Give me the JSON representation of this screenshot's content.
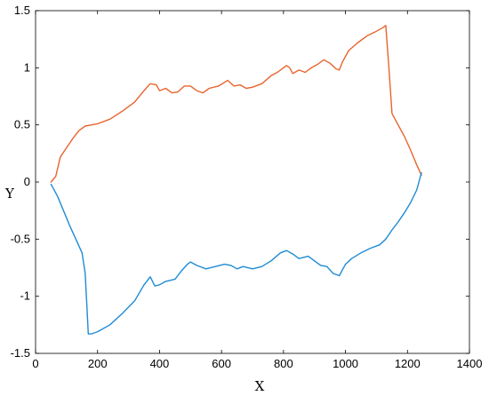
{
  "chart_data": {
    "type": "line",
    "title": "",
    "xlabel": "X",
    "ylabel": "Y",
    "xlim": [
      0,
      1400
    ],
    "ylim": [
      -1.5,
      1.5
    ],
    "xticks": [
      0,
      200,
      400,
      600,
      800,
      1000,
      1200,
      1400
    ],
    "yticks": [
      -1.5,
      -1,
      -0.5,
      0,
      0.5,
      1,
      1.5
    ],
    "xtick_labels": [
      "0",
      "200",
      "400",
      "600",
      "800",
      "1000",
      "1200",
      "1400"
    ],
    "ytick_labels": [
      "-1.5",
      "-1",
      "-0.5",
      "0",
      "0.5",
      "1",
      "1.5"
    ],
    "grid": false,
    "series": [
      {
        "color": "#e8642e",
        "points": [
          [
            50,
            0.0
          ],
          [
            65,
            0.05
          ],
          [
            80,
            0.22
          ],
          [
            100,
            0.3
          ],
          [
            120,
            0.38
          ],
          [
            140,
            0.45
          ],
          [
            160,
            0.49
          ],
          [
            180,
            0.5
          ],
          [
            200,
            0.51
          ],
          [
            240,
            0.55
          ],
          [
            280,
            0.62
          ],
          [
            320,
            0.7
          ],
          [
            350,
            0.8
          ],
          [
            370,
            0.86
          ],
          [
            390,
            0.85
          ],
          [
            400,
            0.8
          ],
          [
            420,
            0.82
          ],
          [
            440,
            0.78
          ],
          [
            460,
            0.79
          ],
          [
            480,
            0.84
          ],
          [
            500,
            0.84
          ],
          [
            520,
            0.8
          ],
          [
            540,
            0.78
          ],
          [
            560,
            0.82
          ],
          [
            590,
            0.84
          ],
          [
            620,
            0.89
          ],
          [
            640,
            0.84
          ],
          [
            660,
            0.85
          ],
          [
            680,
            0.82
          ],
          [
            700,
            0.83
          ],
          [
            730,
            0.86
          ],
          [
            760,
            0.93
          ],
          [
            780,
            0.96
          ],
          [
            800,
            1.0
          ],
          [
            810,
            1.02
          ],
          [
            820,
            1.0
          ],
          [
            830,
            0.95
          ],
          [
            850,
            0.98
          ],
          [
            870,
            0.96
          ],
          [
            890,
            1.0
          ],
          [
            910,
            1.03
          ],
          [
            930,
            1.07
          ],
          [
            950,
            1.04
          ],
          [
            970,
            0.99
          ],
          [
            980,
            0.98
          ],
          [
            990,
            1.05
          ],
          [
            1010,
            1.15
          ],
          [
            1040,
            1.22
          ],
          [
            1070,
            1.28
          ],
          [
            1100,
            1.32
          ],
          [
            1120,
            1.35
          ],
          [
            1130,
            1.37
          ],
          [
            1140,
            1.0
          ],
          [
            1150,
            0.6
          ],
          [
            1170,
            0.5
          ],
          [
            1190,
            0.4
          ],
          [
            1210,
            0.28
          ],
          [
            1230,
            0.15
          ],
          [
            1245,
            0.06
          ]
        ]
      },
      {
        "color": "#1f8bd4",
        "points": [
          [
            50,
            -0.02
          ],
          [
            70,
            -0.12
          ],
          [
            90,
            -0.25
          ],
          [
            110,
            -0.38
          ],
          [
            130,
            -0.5
          ],
          [
            150,
            -0.62
          ],
          [
            160,
            -0.8
          ],
          [
            165,
            -1.05
          ],
          [
            170,
            -1.33
          ],
          [
            180,
            -1.33
          ],
          [
            200,
            -1.31
          ],
          [
            240,
            -1.25
          ],
          [
            280,
            -1.15
          ],
          [
            320,
            -1.04
          ],
          [
            350,
            -0.9
          ],
          [
            370,
            -0.83
          ],
          [
            385,
            -0.91
          ],
          [
            400,
            -0.9
          ],
          [
            420,
            -0.87
          ],
          [
            450,
            -0.85
          ],
          [
            470,
            -0.78
          ],
          [
            490,
            -0.72
          ],
          [
            500,
            -0.7
          ],
          [
            520,
            -0.73
          ],
          [
            550,
            -0.76
          ],
          [
            580,
            -0.74
          ],
          [
            610,
            -0.72
          ],
          [
            630,
            -0.73
          ],
          [
            650,
            -0.76
          ],
          [
            670,
            -0.74
          ],
          [
            700,
            -0.76
          ],
          [
            730,
            -0.74
          ],
          [
            760,
            -0.69
          ],
          [
            790,
            -0.62
          ],
          [
            810,
            -0.6
          ],
          [
            830,
            -0.63
          ],
          [
            850,
            -0.67
          ],
          [
            880,
            -0.65
          ],
          [
            900,
            -0.69
          ],
          [
            920,
            -0.73
          ],
          [
            940,
            -0.74
          ],
          [
            960,
            -0.8
          ],
          [
            980,
            -0.82
          ],
          [
            1000,
            -0.72
          ],
          [
            1020,
            -0.67
          ],
          [
            1050,
            -0.62
          ],
          [
            1080,
            -0.58
          ],
          [
            1110,
            -0.55
          ],
          [
            1130,
            -0.5
          ],
          [
            1150,
            -0.42
          ],
          [
            1170,
            -0.35
          ],
          [
            1190,
            -0.27
          ],
          [
            1210,
            -0.18
          ],
          [
            1230,
            -0.07
          ],
          [
            1245,
            0.08
          ]
        ]
      }
    ]
  }
}
